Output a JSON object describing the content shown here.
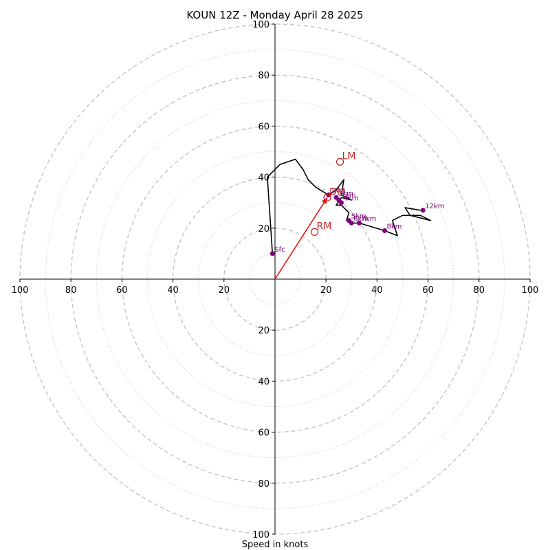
{
  "chart_data": {
    "type": "hodograph",
    "title": "KOUN 12Z - Monday April 28 2025",
    "xlabel": "Speed in knots",
    "max_speed": 100,
    "major_rings": [
      20,
      40,
      60,
      80,
      100
    ],
    "minor_rings": [
      10,
      30,
      50,
      70,
      90
    ],
    "tick_labels": {
      "x_left": [
        "100",
        "80",
        "60",
        "40",
        "20"
      ],
      "x_right": [
        "20",
        "40",
        "60",
        "80",
        "100"
      ],
      "y_up": [
        "20",
        "40",
        "60",
        "80",
        "100"
      ],
      "y_down": [
        "20",
        "40",
        "60",
        "80",
        "100"
      ]
    },
    "colors": {
      "trace": "#000000",
      "height_points": "#800080",
      "storm_motion": "#cc2222",
      "shear_vector": "#ee1111",
      "major_ring": "#bbbbbb",
      "minor_ring": "#cccccc"
    },
    "trace": [
      [
        -1,
        10
      ],
      [
        -3,
        40
      ],
      [
        2,
        45
      ],
      [
        8,
        47
      ],
      [
        11,
        43
      ],
      [
        13,
        39
      ],
      [
        16,
        36
      ],
      [
        21,
        33
      ],
      [
        24,
        35
      ],
      [
        27,
        39
      ],
      [
        26,
        33
      ],
      [
        30,
        31
      ],
      [
        26,
        32
      ],
      [
        24,
        29
      ],
      [
        26,
        29
      ],
      [
        29,
        26
      ],
      [
        28,
        23
      ],
      [
        30,
        22
      ],
      [
        33,
        22
      ],
      [
        43,
        19
      ],
      [
        48,
        17
      ],
      [
        46,
        23
      ],
      [
        50,
        25
      ],
      [
        57,
        25
      ],
      [
        61,
        23
      ],
      [
        53,
        25
      ],
      [
        51,
        28
      ],
      [
        57,
        27
      ]
    ],
    "height_points": [
      {
        "label": "Sfc",
        "u": -1,
        "v": 10
      },
      {
        "label": "1km",
        "u": 21,
        "v": 33
      },
      {
        "label": "2km",
        "u": 24,
        "v": 32
      },
      {
        "label": "3km",
        "u": 25,
        "v": 31
      },
      {
        "label": "4km",
        "u": 26,
        "v": 30
      },
      {
        "label": "5km",
        "u": 29,
        "v": 23
      },
      {
        "label": "6km",
        "u": 30,
        "v": 22
      },
      {
        "label": "7km",
        "u": 33,
        "v": 22
      },
      {
        "label": "8km",
        "u": 43,
        "v": 19
      },
      {
        "label": "12km",
        "u": 58,
        "v": 27
      }
    ],
    "storm_motions": [
      {
        "label": "RM",
        "u": 15.5,
        "v": 18.5
      },
      {
        "label": "LM",
        "u": 25.5,
        "v": 46
      },
      {
        "label": "DM",
        "u": 20.5,
        "v": 32
      }
    ],
    "shear_vector": {
      "u0": 0,
      "v0": 0,
      "u1": 20.5,
      "v1": 32
    }
  }
}
